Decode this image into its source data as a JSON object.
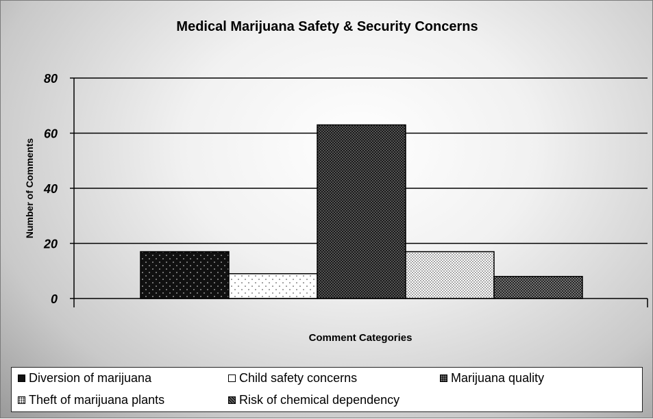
{
  "chart_data": {
    "type": "bar",
    "title": "Medical Marijuana Safety & Security Concerns",
    "xlabel": "Comment Categories",
    "ylabel": "Number of Comments",
    "ylim": [
      0,
      80
    ],
    "yticks": [
      "0",
      "20",
      "40",
      "60",
      "80"
    ],
    "grid": true,
    "legend_position": "bottom",
    "series": [
      {
        "name": "Diversion of marijuana",
        "values": [
          17
        ]
      },
      {
        "name": "Child safety concerns",
        "values": [
          9
        ]
      },
      {
        "name": "Marijuana quality",
        "values": [
          63
        ]
      },
      {
        "name": "Theft of marijuana plants",
        "values": [
          17
        ]
      },
      {
        "name": "Risk of chemical dependency",
        "values": [
          8
        ]
      }
    ]
  }
}
